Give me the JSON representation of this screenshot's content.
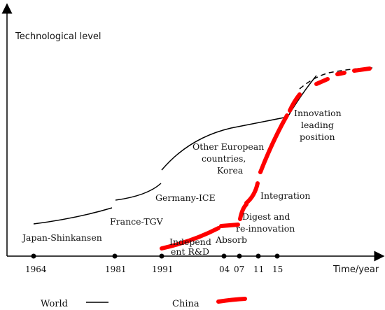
{
  "y_axis_label": "Technological level",
  "x_axis_label": "Time/year",
  "ticks": [
    "1964",
    "1981",
    "1991",
    "04",
    "07",
    "11",
    "15"
  ],
  "annotations": {
    "japan": "Japan-Shinkansen",
    "france": "France-TGV",
    "germany": "Germany-ICE",
    "europe_1": "Other European",
    "europe_2": "countries,",
    "europe_3": "Korea",
    "innovation_1": "Innovation",
    "innovation_2": "leading",
    "innovation_3": "position",
    "integration": "Integration",
    "digest_1": "Digest and",
    "digest_2": "re-innovation",
    "absorb": "Absorb",
    "independ_1": "Independ",
    "independ_2": "ent R&D"
  },
  "legend": {
    "world": "World",
    "china": "China"
  },
  "colors": {
    "world": "#000000",
    "china": "#ff0000",
    "axis": "#000000"
  }
}
